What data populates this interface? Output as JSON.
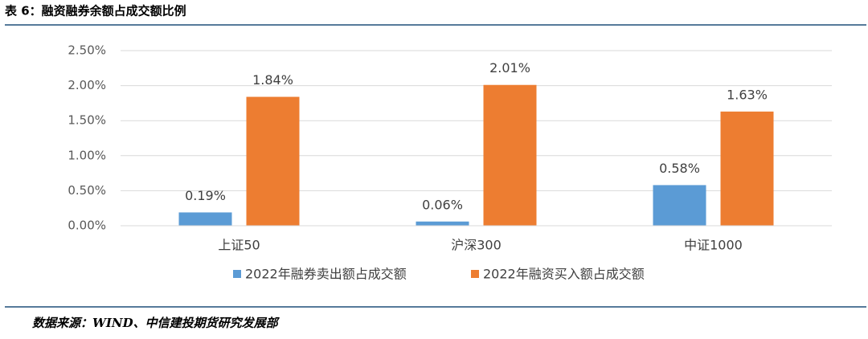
{
  "title": "表 6：融资融券余额占成交额比例",
  "source": "数据来源：WIND、中信建投期货研究发展部",
  "chart_data": {
    "type": "bar",
    "categories": [
      "上证50",
      "沪深300",
      "中证1000"
    ],
    "series": [
      {
        "name": "2022年融券卖出额占成交额",
        "color": "#5b9bd5",
        "values": [
          0.19,
          0.06,
          0.58
        ],
        "value_labels": [
          "0.19%",
          "0.06%",
          "0.58%"
        ]
      },
      {
        "name": "2022年融资买入额占成交额",
        "color": "#ed7d31",
        "values": [
          1.84,
          2.01,
          1.63
        ],
        "value_labels": [
          "1.84%",
          "2.01%",
          "1.63%"
        ]
      }
    ],
    "ylim": [
      0,
      2.5
    ],
    "yticks": [
      {
        "value": 0,
        "label": "0.00%"
      },
      {
        "value": 0.5,
        "label": "0.50%"
      },
      {
        "value": 1,
        "label": "1.00%"
      },
      {
        "value": 1.5,
        "label": "1.50%"
      },
      {
        "value": 2,
        "label": "2.00%"
      },
      {
        "value": 2.5,
        "label": "2.50%"
      }
    ],
    "grid": true,
    "legend": "bottom"
  }
}
